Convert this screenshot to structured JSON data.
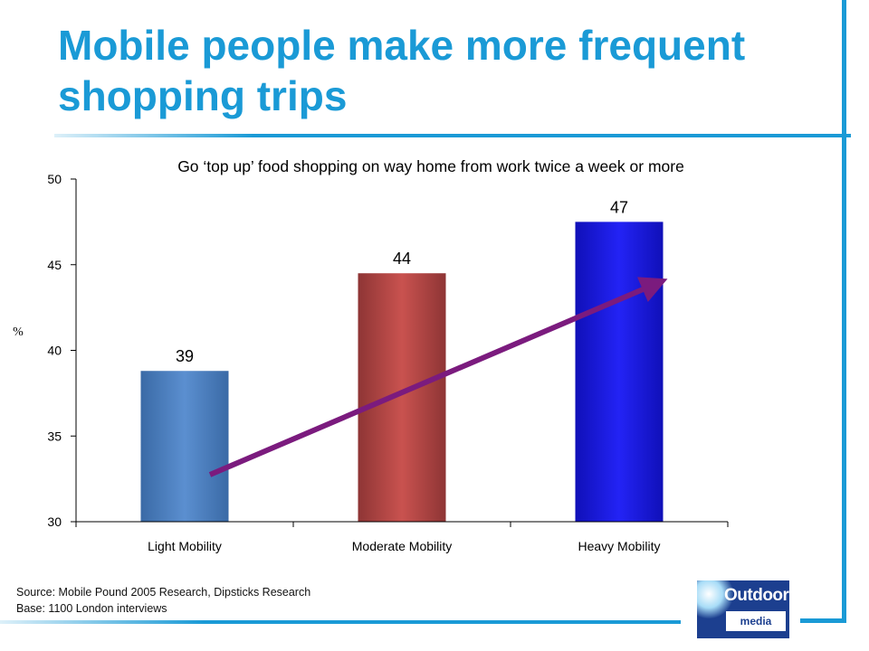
{
  "page": {
    "title": "Mobile people make more frequent shopping trips",
    "source_line1": "Source: Mobile Pound 2005 Research, Dipsticks Research",
    "source_line2": "Base: 1100 London interviews",
    "logo_word1": "Outdoor",
    "logo_word2": "media centre",
    "accent_color": "#1a9ad6"
  },
  "chart_data": {
    "type": "bar",
    "title": "Go ‘top up’ food shopping on way home from work twice a week or more",
    "ylabel": "%",
    "xlabel": "",
    "categories": [
      "Light Mobility",
      "Moderate Mobility",
      "Heavy Mobility"
    ],
    "values": [
      38.8,
      44.5,
      47.5
    ],
    "data_labels": [
      "39",
      "44",
      "47"
    ],
    "ylim": [
      30,
      50
    ],
    "yticks": [
      30,
      35,
      40,
      45,
      50
    ],
    "grid": false,
    "colors": [
      "#4a7fc0",
      "#c0504d",
      "#1a1ae6"
    ],
    "trend_arrow": {
      "color": "#7b1b7e",
      "direction": "upward from Light Mobility to Heavy Mobility"
    }
  }
}
